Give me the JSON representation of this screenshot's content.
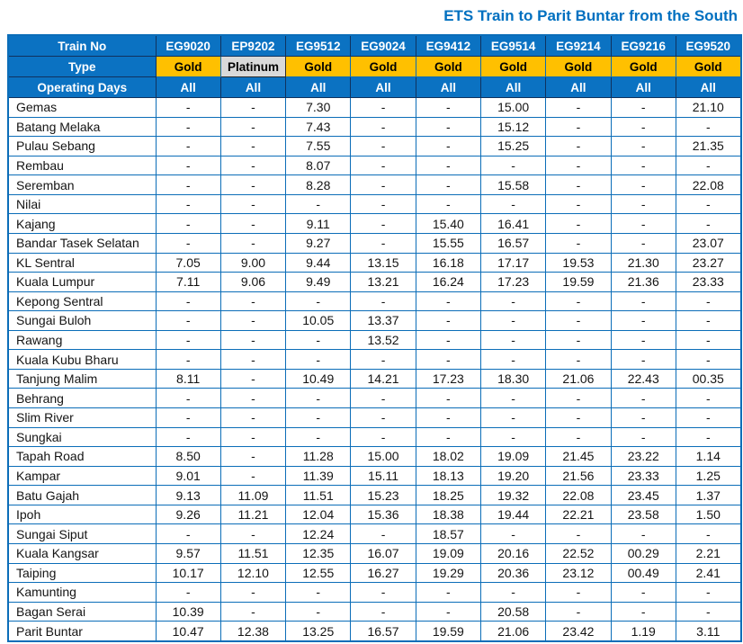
{
  "title": "ETS Train to Parit Buntar from the South",
  "colors": {
    "header_blue": "#0B72C2",
    "header_border_dark": "#10325E",
    "gold": "#FFC000",
    "platinum": "#D9D9D9",
    "body_border_blue": "#0B6DB8",
    "title_text": "#0070C0",
    "body_text": "#141414"
  },
  "chart_data": {
    "type": "table",
    "title": "ETS Train to Parit Buntar from the South",
    "row_headers": [
      "Train No",
      "Type",
      "Operating Days"
    ],
    "columns": [
      {
        "train_no": "EG9020",
        "type": "Gold",
        "operating_days": "All"
      },
      {
        "train_no": "EP9202",
        "type": "Platinum",
        "operating_days": "All"
      },
      {
        "train_no": "EG9512",
        "type": "Gold",
        "operating_days": "All"
      },
      {
        "train_no": "EG9024",
        "type": "Gold",
        "operating_days": "All"
      },
      {
        "train_no": "EG9412",
        "type": "Gold",
        "operating_days": "All"
      },
      {
        "train_no": "EG9514",
        "type": "Gold",
        "operating_days": "All"
      },
      {
        "train_no": "EG9214",
        "type": "Gold",
        "operating_days": "All"
      },
      {
        "train_no": "EG9216",
        "type": "Gold",
        "operating_days": "All"
      },
      {
        "train_no": "EG9520",
        "type": "Gold",
        "operating_days": "All"
      }
    ],
    "rows": [
      {
        "station": "Gemas",
        "times": [
          "-",
          "-",
          "7.30",
          "-",
          "-",
          "15.00",
          "-",
          "-",
          "21.10"
        ]
      },
      {
        "station": "Batang Melaka",
        "times": [
          "-",
          "-",
          "7.43",
          "-",
          "-",
          "15.12",
          "-",
          "-",
          "-"
        ]
      },
      {
        "station": "Pulau Sebang",
        "times": [
          "-",
          "-",
          "7.55",
          "-",
          "-",
          "15.25",
          "-",
          "-",
          "21.35"
        ]
      },
      {
        "station": "Rembau",
        "times": [
          "-",
          "-",
          "8.07",
          "-",
          "-",
          "-",
          "-",
          "-",
          "-"
        ]
      },
      {
        "station": "Seremban",
        "times": [
          "-",
          "-",
          "8.28",
          "-",
          "-",
          "15.58",
          "-",
          "-",
          "22.08"
        ]
      },
      {
        "station": "Nilai",
        "times": [
          "-",
          "-",
          "-",
          "-",
          "-",
          "-",
          "-",
          "-",
          "-"
        ]
      },
      {
        "station": "Kajang",
        "times": [
          "-",
          "-",
          "9.11",
          "-",
          "15.40",
          "16.41",
          "-",
          "-",
          "-"
        ]
      },
      {
        "station": "Bandar Tasek Selatan",
        "times": [
          "-",
          "-",
          "9.27",
          "-",
          "15.55",
          "16.57",
          "-",
          "-",
          "23.07"
        ]
      },
      {
        "station": "KL Sentral",
        "times": [
          "7.05",
          "9.00",
          "9.44",
          "13.15",
          "16.18",
          "17.17",
          "19.53",
          "21.30",
          "23.27"
        ]
      },
      {
        "station": "Kuala Lumpur",
        "times": [
          "7.11",
          "9.06",
          "9.49",
          "13.21",
          "16.24",
          "17.23",
          "19.59",
          "21.36",
          "23.33"
        ]
      },
      {
        "station": "Kepong Sentral",
        "times": [
          "-",
          "-",
          "-",
          "-",
          "-",
          "-",
          "-",
          "-",
          "-"
        ]
      },
      {
        "station": "Sungai Buloh",
        "times": [
          "-",
          "-",
          "10.05",
          "13.37",
          "-",
          "-",
          "-",
          "-",
          "-"
        ]
      },
      {
        "station": "Rawang",
        "times": [
          "-",
          "-",
          "-",
          "13.52",
          "-",
          "-",
          "-",
          "-",
          "-"
        ]
      },
      {
        "station": "Kuala Kubu Bharu",
        "times": [
          "-",
          "-",
          "-",
          "-",
          "-",
          "-",
          "-",
          "-",
          "-"
        ]
      },
      {
        "station": "Tanjung Malim",
        "times": [
          "8.11",
          "-",
          "10.49",
          "14.21",
          "17.23",
          "18.30",
          "21.06",
          "22.43",
          "00.35"
        ]
      },
      {
        "station": "Behrang",
        "times": [
          "-",
          "-",
          "-",
          "-",
          "-",
          "-",
          "-",
          "-",
          "-"
        ]
      },
      {
        "station": "Slim River",
        "times": [
          "-",
          "-",
          "-",
          "-",
          "-",
          "-",
          "-",
          "-",
          "-"
        ]
      },
      {
        "station": "Sungkai",
        "times": [
          "-",
          "-",
          "-",
          "-",
          "-",
          "-",
          "-",
          "-",
          "-"
        ]
      },
      {
        "station": "Tapah Road",
        "times": [
          "8.50",
          "-",
          "11.28",
          "15.00",
          "18.02",
          "19.09",
          "21.45",
          "23.22",
          "1.14"
        ]
      },
      {
        "station": "Kampar",
        "times": [
          "9.01",
          "-",
          "11.39",
          "15.11",
          "18.13",
          "19.20",
          "21.56",
          "23.33",
          "1.25"
        ]
      },
      {
        "station": "Batu Gajah",
        "times": [
          "9.13",
          "11.09",
          "11.51",
          "15.23",
          "18.25",
          "19.32",
          "22.08",
          "23.45",
          "1.37"
        ]
      },
      {
        "station": "Ipoh",
        "times": [
          "9.26",
          "11.21",
          "12.04",
          "15.36",
          "18.38",
          "19.44",
          "22.21",
          "23.58",
          "1.50"
        ]
      },
      {
        "station": "Sungai Siput",
        "times": [
          "-",
          "-",
          "12.24",
          "-",
          "18.57",
          "-",
          "-",
          "-",
          "-"
        ]
      },
      {
        "station": "Kuala Kangsar",
        "times": [
          "9.57",
          "11.51",
          "12.35",
          "16.07",
          "19.09",
          "20.16",
          "22.52",
          "00.29",
          "2.21"
        ]
      },
      {
        "station": "Taiping",
        "times": [
          "10.17",
          "12.10",
          "12.55",
          "16.27",
          "19.29",
          "20.36",
          "23.12",
          "00.49",
          "2.41"
        ]
      },
      {
        "station": "Kamunting",
        "times": [
          "-",
          "-",
          "-",
          "-",
          "-",
          "-",
          "-",
          "-",
          "-"
        ]
      },
      {
        "station": "Bagan Serai",
        "times": [
          "10.39",
          "-",
          "-",
          "-",
          "-",
          "20.58",
          "-",
          "-",
          "-"
        ]
      },
      {
        "station": "Parit Buntar",
        "times": [
          "10.47",
          "12.38",
          "13.25",
          "16.57",
          "19.59",
          "21.06",
          "23.42",
          "1.19",
          "3.11"
        ]
      }
    ]
  }
}
